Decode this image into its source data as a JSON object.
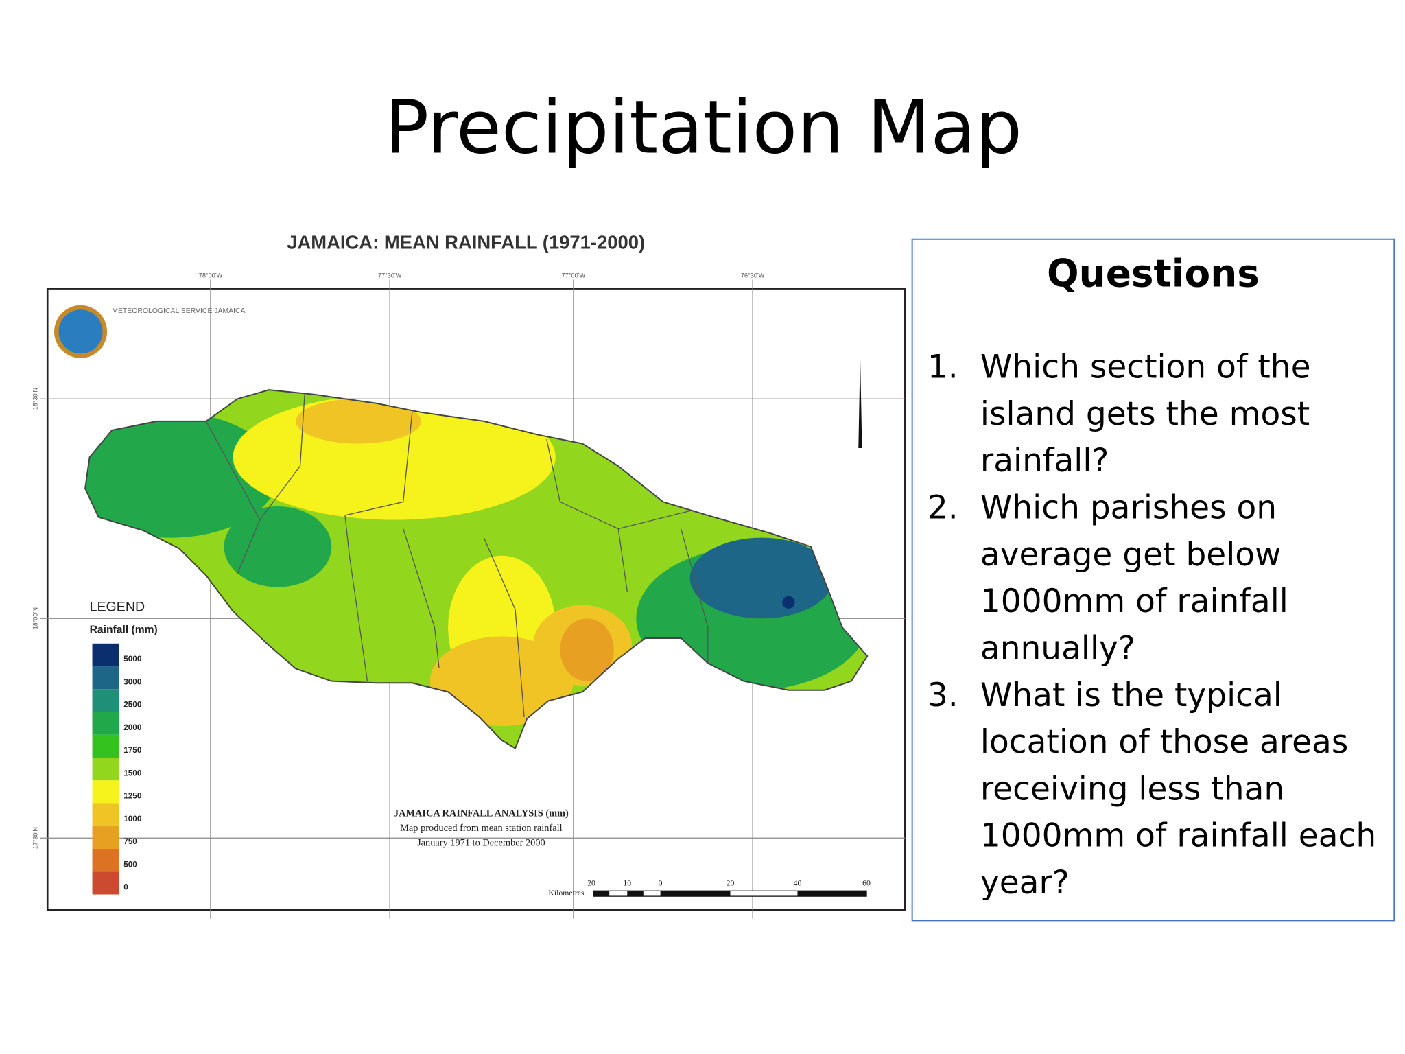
{
  "header": {
    "title": "Precipitation Map"
  },
  "map": {
    "title": "JAMAICA: MEAN RAINFALL (1971-2000)",
    "agency": "METEOROLOGICAL SERVICE JAMAICA",
    "longitude_labels": [
      "78°00'W",
      "77°30'W",
      "77°00'W",
      "76°30'W"
    ],
    "latitude_labels": [
      "18°30'N",
      "18°00'N",
      "17°30'N"
    ],
    "legend": {
      "title": "LEGEND",
      "subtitle": "Rainfall (mm)",
      "items": [
        {
          "label": "5000",
          "color": "#0b2f6e"
        },
        {
          "label": "3000",
          "color": "#1d6688"
        },
        {
          "label": "2500",
          "color": "#1f8f78"
        },
        {
          "label": "2000",
          "color": "#22a84a"
        },
        {
          "label": "1750",
          "color": "#34c21e"
        },
        {
          "label": "1500",
          "color": "#92d61e"
        },
        {
          "label": "1250",
          "color": "#f6f21c"
        },
        {
          "label": "1000",
          "color": "#f0c424"
        },
        {
          "label": "750",
          "color": "#e8a022"
        },
        {
          "label": "500",
          "color": "#dc7224"
        },
        {
          "label": "0",
          "color": "#cc4a30"
        }
      ]
    },
    "notes": [
      "JAMAICA RAINFALL ANALYSIS (mm)",
      "Map produced from mean station rainfall",
      "January 1971 to December 2000"
    ],
    "scale": {
      "unit": "Kilometres",
      "labels": [
        "20",
        "10",
        "0",
        "20",
        "40",
        "60"
      ]
    }
  },
  "questions": {
    "title": "Questions",
    "items": [
      {
        "number": "1.",
        "lines": [
          "Which section of the",
          "island gets the most",
          "rainfall?"
        ]
      },
      {
        "number": "2.",
        "lines": [
          "Which parishes on",
          "average get below",
          "1000mm of rainfall",
          "annually?"
        ]
      },
      {
        "number": "3.",
        "lines": [
          "What is the typical",
          "location of those areas",
          "receiving less than",
          "1000mm of rainfall each",
          "year?"
        ]
      }
    ]
  }
}
